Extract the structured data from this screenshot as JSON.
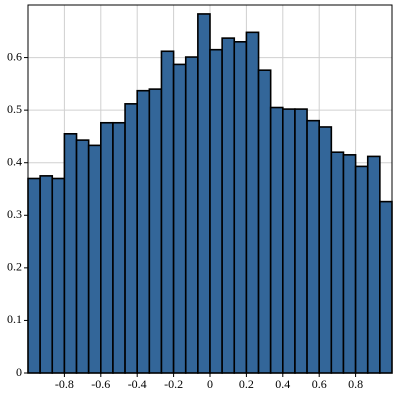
{
  "chart_data": {
    "type": "histogram",
    "bins": [
      -1,
      -0.9333,
      -0.8667,
      -0.8,
      -0.7333,
      -0.6667,
      -0.6,
      -0.5333,
      -0.4667,
      -0.4,
      -0.3333,
      -0.2667,
      -0.2,
      -0.1333,
      -0.0667,
      0,
      0.0667,
      0.1333,
      0.2,
      0.2667,
      0.3333,
      0.4,
      0.4667,
      0.5333,
      0.6,
      0.6667,
      0.7333,
      0.8,
      0.8667,
      0.9333,
      1
    ],
    "values": [
      0.37,
      0.375,
      0.37,
      0.455,
      0.443,
      0.433,
      0.476,
      0.476,
      0.512,
      0.537,
      0.54,
      0.612,
      0.587,
      0.601,
      0.683,
      0.615,
      0.637,
      0.63,
      0.648,
      0.576,
      0.505,
      0.502,
      0.502,
      0.48,
      0.468,
      0.42,
      0.415,
      0.393,
      0.412,
      0.326
    ],
    "color": "#336699",
    "xlim": [
      -1,
      1
    ],
    "ylim": [
      0,
      0.7
    ],
    "xticks": [
      -0.8,
      -0.6,
      -0.4,
      -0.2,
      0,
      0.2,
      0.4,
      0.6,
      0.8
    ],
    "yticks": [
      0,
      0.1,
      0.2,
      0.3,
      0.4,
      0.5,
      0.6
    ],
    "grid": true
  }
}
